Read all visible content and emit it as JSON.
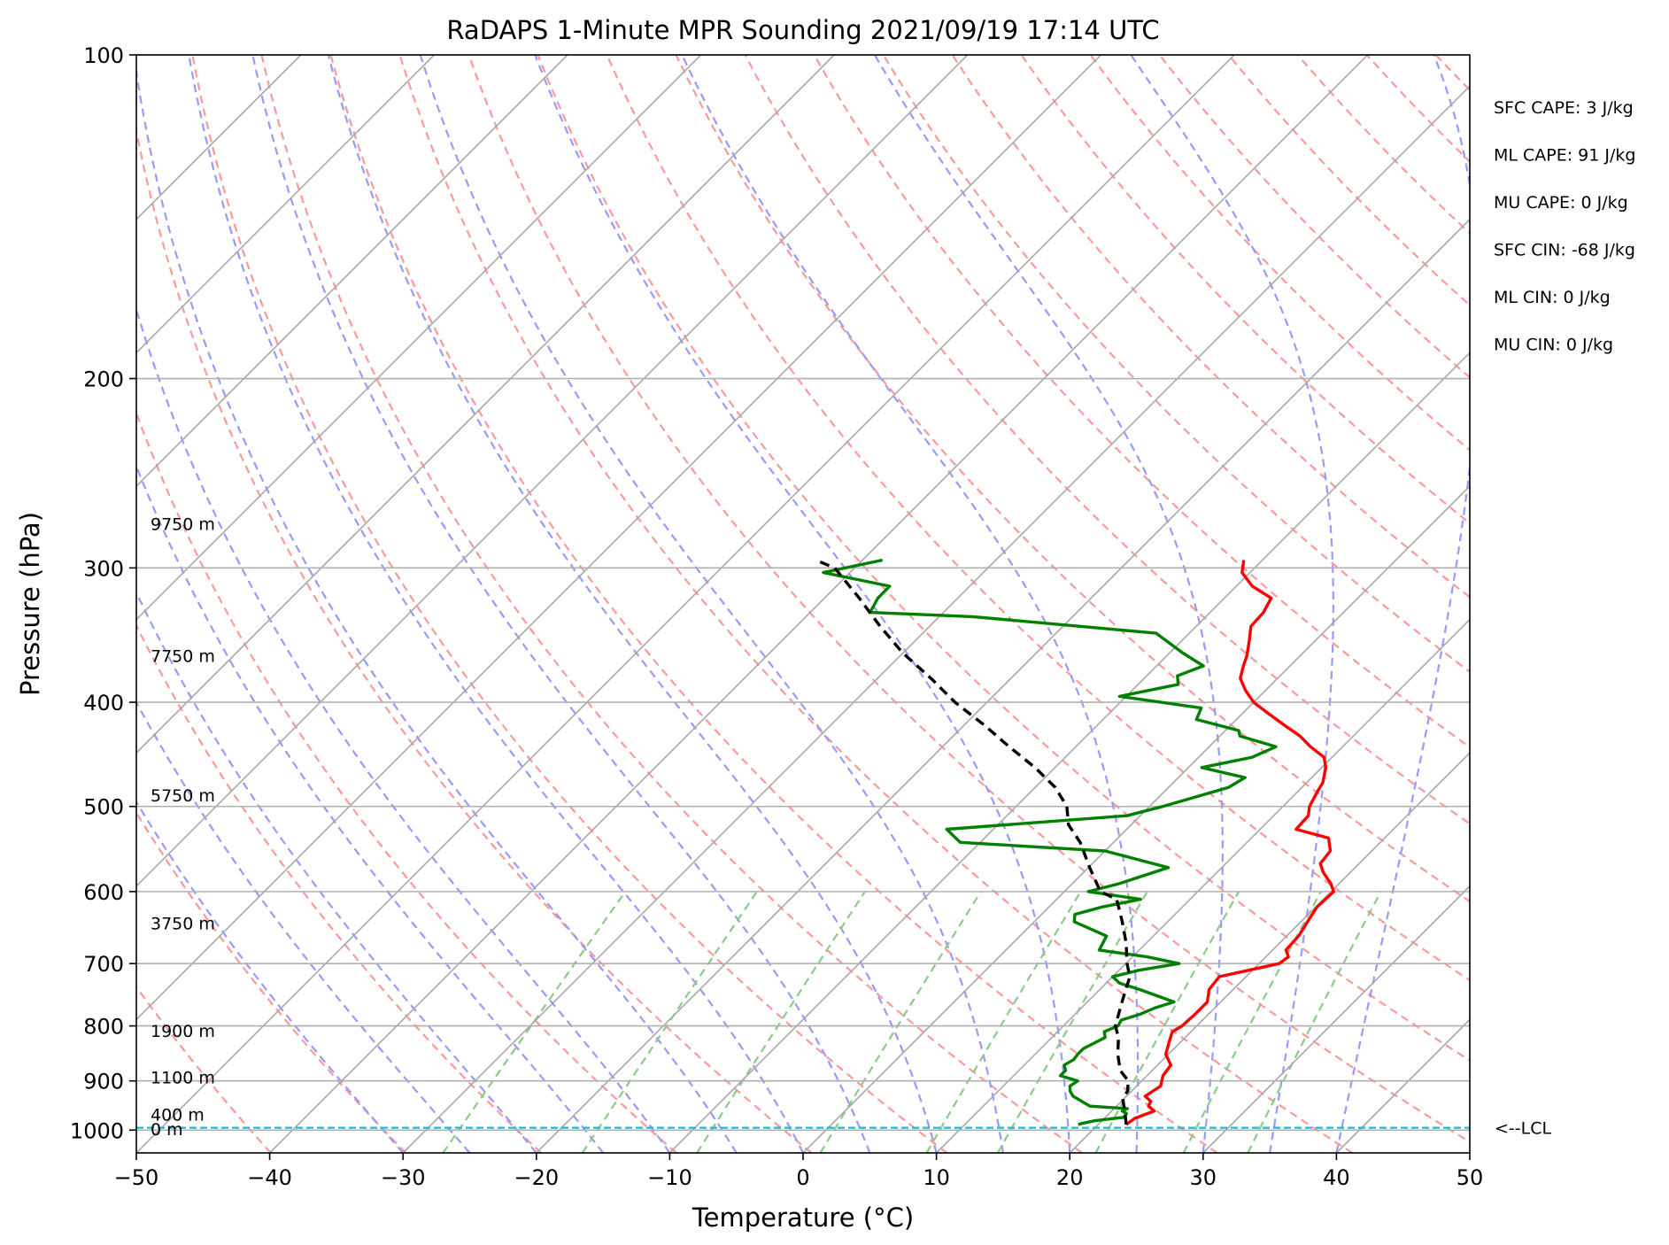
{
  "chart_data": {
    "type": "line",
    "title": "RaDAPS 1-Minute MPR Sounding 2021/09/19 17:14 UTC",
    "xlabel": "Temperature (°C)",
    "ylabel": "Pressure (hPa)",
    "xlim": [
      -50,
      50
    ],
    "ylim": [
      1050,
      100
    ],
    "y_scale": "log",
    "skew_t": true,
    "grid": true,
    "x_ticks": [
      -50,
      -40,
      -30,
      -20,
      -10,
      0,
      10,
      20,
      30,
      40,
      50
    ],
    "x_tick_labels": [
      "−50",
      "−40",
      "−30",
      "−20",
      "−10",
      "0",
      "10",
      "20",
      "30",
      "40",
      "50"
    ],
    "y_ticks": [
      100,
      200,
      300,
      400,
      500,
      600,
      700,
      800,
      900,
      1000
    ],
    "y_tick_labels": [
      "100",
      "200",
      "300",
      "400",
      "500",
      "600",
      "700",
      "800",
      "900",
      "1000"
    ],
    "series": [
      {
        "key": "temperature",
        "color": "#ff0000",
        "points": [
          [
            22.1,
            988
          ],
          [
            22.3,
            975
          ],
          [
            23.2,
            960
          ],
          [
            22.4,
            950
          ],
          [
            22.2,
            940
          ],
          [
            21.4,
            930
          ],
          [
            21.8,
            910
          ],
          [
            21.2,
            890
          ],
          [
            21.0,
            870
          ],
          [
            19.8,
            850
          ],
          [
            19.2,
            830
          ],
          [
            18.6,
            810
          ],
          [
            18.9,
            800
          ],
          [
            19.0,
            780
          ],
          [
            19.0,
            760
          ],
          [
            18.2,
            740
          ],
          [
            18.0,
            720
          ],
          [
            21.5,
            700
          ],
          [
            21.7,
            690
          ],
          [
            21.0,
            680
          ],
          [
            20.9,
            660
          ],
          [
            20.5,
            640
          ],
          [
            20.1,
            620
          ],
          [
            20.2,
            600
          ],
          [
            19.4,
            590
          ],
          [
            17.9,
            575
          ],
          [
            17.1,
            565
          ],
          [
            16.9,
            550
          ],
          [
            15.8,
            535
          ],
          [
            12.7,
            525
          ],
          [
            12.6,
            510
          ],
          [
            12.0,
            500
          ],
          [
            11.5,
            485
          ],
          [
            11.2,
            475
          ],
          [
            10.3,
            460
          ],
          [
            9.4,
            450
          ],
          [
            7.6,
            440
          ],
          [
            6.0,
            430
          ],
          [
            4.0,
            420
          ],
          [
            2.0,
            410
          ],
          [
            0.0,
            400
          ],
          [
            -1.5,
            390
          ],
          [
            -2.8,
            380
          ],
          [
            -3.5,
            370
          ],
          [
            -4.0,
            362
          ],
          [
            -5.0,
            350
          ],
          [
            -5.9,
            340
          ],
          [
            -6.0,
            330
          ],
          [
            -6.5,
            320
          ],
          [
            -8.8,
            312
          ],
          [
            -10.6,
            303
          ],
          [
            -11.4,
            295
          ]
        ]
      },
      {
        "key": "dewpoint",
        "color": "#008000",
        "points": [
          [
            18.5,
            988
          ],
          [
            18.8,
            985
          ],
          [
            19.5,
            980
          ],
          [
            21.4,
            973
          ],
          [
            21.3,
            965
          ],
          [
            20.8,
            960
          ],
          [
            21.0,
            955
          ],
          [
            18.0,
            950
          ],
          [
            16.0,
            930
          ],
          [
            15.4,
            920
          ],
          [
            15.0,
            910
          ],
          [
            15.2,
            900
          ],
          [
            13.5,
            890
          ],
          [
            13.5,
            880
          ],
          [
            13.0,
            870
          ],
          [
            13.3,
            860
          ],
          [
            13.2,
            850
          ],
          [
            13.2,
            840
          ],
          [
            14.0,
            820
          ],
          [
            13.5,
            810
          ],
          [
            14.1,
            800
          ],
          [
            13.9,
            790
          ],
          [
            14.9,
            780
          ],
          [
            15.5,
            770
          ],
          [
            16.5,
            760
          ],
          [
            13.0,
            740
          ],
          [
            11.0,
            730
          ],
          [
            10.0,
            720
          ],
          [
            11.5,
            710
          ],
          [
            14.0,
            700
          ],
          [
            11.1,
            690
          ],
          [
            7.0,
            680
          ],
          [
            6.5,
            660
          ],
          [
            3.0,
            640
          ],
          [
            2.5,
            630
          ],
          [
            4.0,
            620
          ],
          [
            6.3,
            610
          ],
          [
            1.8,
            600
          ],
          [
            3.5,
            590
          ],
          [
            6.0,
            570
          ],
          [
            0.0,
            550
          ],
          [
            -11.5,
            540
          ],
          [
            -13.5,
            525
          ],
          [
            -1.0,
            510
          ],
          [
            1.0,
            500
          ],
          [
            4.5,
            480
          ],
          [
            5.0,
            470
          ],
          [
            1.0,
            460
          ],
          [
            4.0,
            450
          ],
          [
            5.0,
            440
          ],
          [
            1.5,
            430
          ],
          [
            1.0,
            425
          ],
          [
            -3.0,
            415
          ],
          [
            -3.5,
            405
          ],
          [
            -10.5,
            395
          ],
          [
            -7.0,
            385
          ],
          [
            -7.7,
            378
          ],
          [
            -6.5,
            370
          ],
          [
            -9.0,
            360
          ],
          [
            -12.5,
            345
          ],
          [
            -27.5,
            333
          ],
          [
            -35.5,
            330
          ],
          [
            -36.0,
            320
          ],
          [
            -36.0,
            312
          ],
          [
            -42.0,
            303
          ],
          [
            -38.5,
            295
          ]
        ]
      },
      {
        "key": "parcel",
        "color": "#000000",
        "points": [
          [
            22.1,
            988
          ],
          [
            21.0,
            960
          ],
          [
            19.9,
            935
          ],
          [
            19.7,
            920
          ],
          [
            19.0,
            900
          ],
          [
            17.6,
            880
          ],
          [
            16.2,
            850
          ],
          [
            15.0,
            820
          ],
          [
            13.9,
            800
          ],
          [
            12.6,
            760
          ],
          [
            11.3,
            720
          ],
          [
            10.1,
            700
          ],
          [
            8.5,
            670
          ],
          [
            6.6,
            640
          ],
          [
            4.5,
            610
          ],
          [
            2.7,
            600
          ],
          [
            0.1,
            570
          ],
          [
            -2.5,
            540
          ],
          [
            -4.7,
            520
          ],
          [
            -6.2,
            500
          ],
          [
            -8.5,
            480
          ],
          [
            -11.5,
            460
          ],
          [
            -15.0,
            440
          ],
          [
            -18.5,
            420
          ],
          [
            -22.4,
            400
          ],
          [
            -26.0,
            380
          ],
          [
            -30.0,
            360
          ],
          [
            -33.7,
            340
          ],
          [
            -37.4,
            320
          ],
          [
            -41.5,
            300
          ],
          [
            -43.5,
            295
          ]
        ]
      }
    ],
    "lcl_label": "<--LCL",
    "lcl_pressure": 995,
    "height_labels": [
      {
        "text": "9750 m",
        "p": 273
      },
      {
        "text": "7750 m",
        "p": 362
      },
      {
        "text": "5750 m",
        "p": 488
      },
      {
        "text": "3750 m",
        "p": 642
      },
      {
        "text": "1900 m",
        "p": 808
      },
      {
        "text": "1100 m",
        "p": 893
      },
      {
        "text": "400 m",
        "p": 967
      },
      {
        "text": "0 m",
        "p": 998
      }
    ],
    "stats": [
      "SFC CAPE: 3 J/kg",
      "ML CAPE: 91 J/kg",
      "MU CAPE: 0 J/kg",
      "SFC CIN: -68 J/kg",
      "ML CIN: 0 J/kg",
      "MU CIN: 0 J/kg"
    ],
    "background_lines": {
      "dry_adiabats_theta_K": [
        230,
        240,
        250,
        260,
        270,
        280,
        290,
        300,
        310,
        320,
        330,
        340,
        350,
        360,
        370,
        380,
        390,
        400,
        410,
        420,
        430,
        440,
        450,
        460
      ],
      "moist_adiabats_start_C": [
        -30,
        -25,
        -20,
        -15,
        -10,
        -5,
        0,
        5,
        10,
        15,
        20,
        25,
        30,
        35,
        40
      ],
      "mixing_ratio_g_kg": [
        0.4,
        1,
        2,
        4,
        7,
        10,
        16,
        24,
        32
      ],
      "isotherms_C": [
        -120,
        -110,
        -100,
        -90,
        -80,
        -70,
        -60,
        -50,
        -40,
        -30,
        -20,
        -10,
        0,
        10,
        20,
        30,
        40,
        50
      ],
      "colors": {
        "dry": "#ff9999",
        "moist": "#9999ff",
        "mixing": "#88cc88",
        "isotherm": "#a8a8a8",
        "lcl": "#17becf"
      }
    }
  }
}
